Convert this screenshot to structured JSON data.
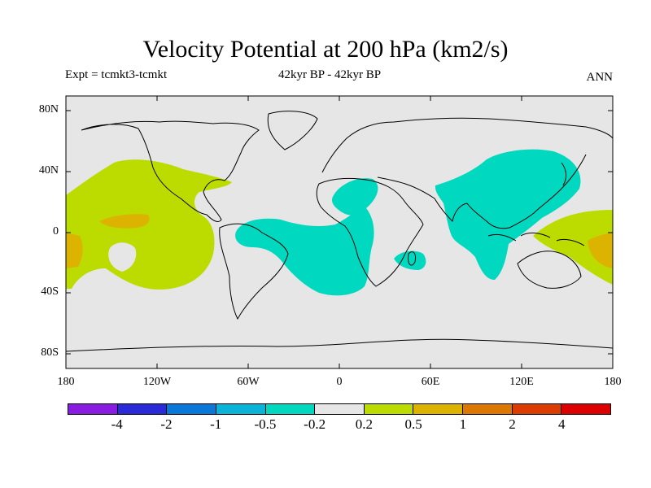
{
  "title": "Velocity Potential at 200 hPa (km2/s)",
  "subtitle_left": "Expt = tcmkt3-tcmkt",
  "subtitle_center": "42kyr BP - 42kyr BP",
  "subtitle_right": "ANN",
  "y_axis_labels": [
    "80N",
    "40N",
    "0",
    "40S",
    "80S"
  ],
  "x_axis_labels": [
    "180",
    "120W",
    "60W",
    "0",
    "60E",
    "120E",
    "180"
  ],
  "colorbar": {
    "colors": [
      "#8a1be0",
      "#2a2ad8",
      "#0a78d8",
      "#0ab4d8",
      "#00d8c0",
      "#e6e6e6",
      "#bcdc00",
      "#dcb400",
      "#dc7800",
      "#dc3c00",
      "#dc0000"
    ],
    "labels": [
      "-4",
      "-2",
      "-1",
      "-0.5",
      "-0.2",
      "0.2",
      "0.5",
      "1",
      "2",
      "4"
    ]
  },
  "fill_colors": {
    "background": "#e6e6e6",
    "negative": "#00d8c0",
    "positive": "#bcdc00",
    "strong_positive": "#dcb400",
    "stronger_positive": "#dc7800"
  }
}
